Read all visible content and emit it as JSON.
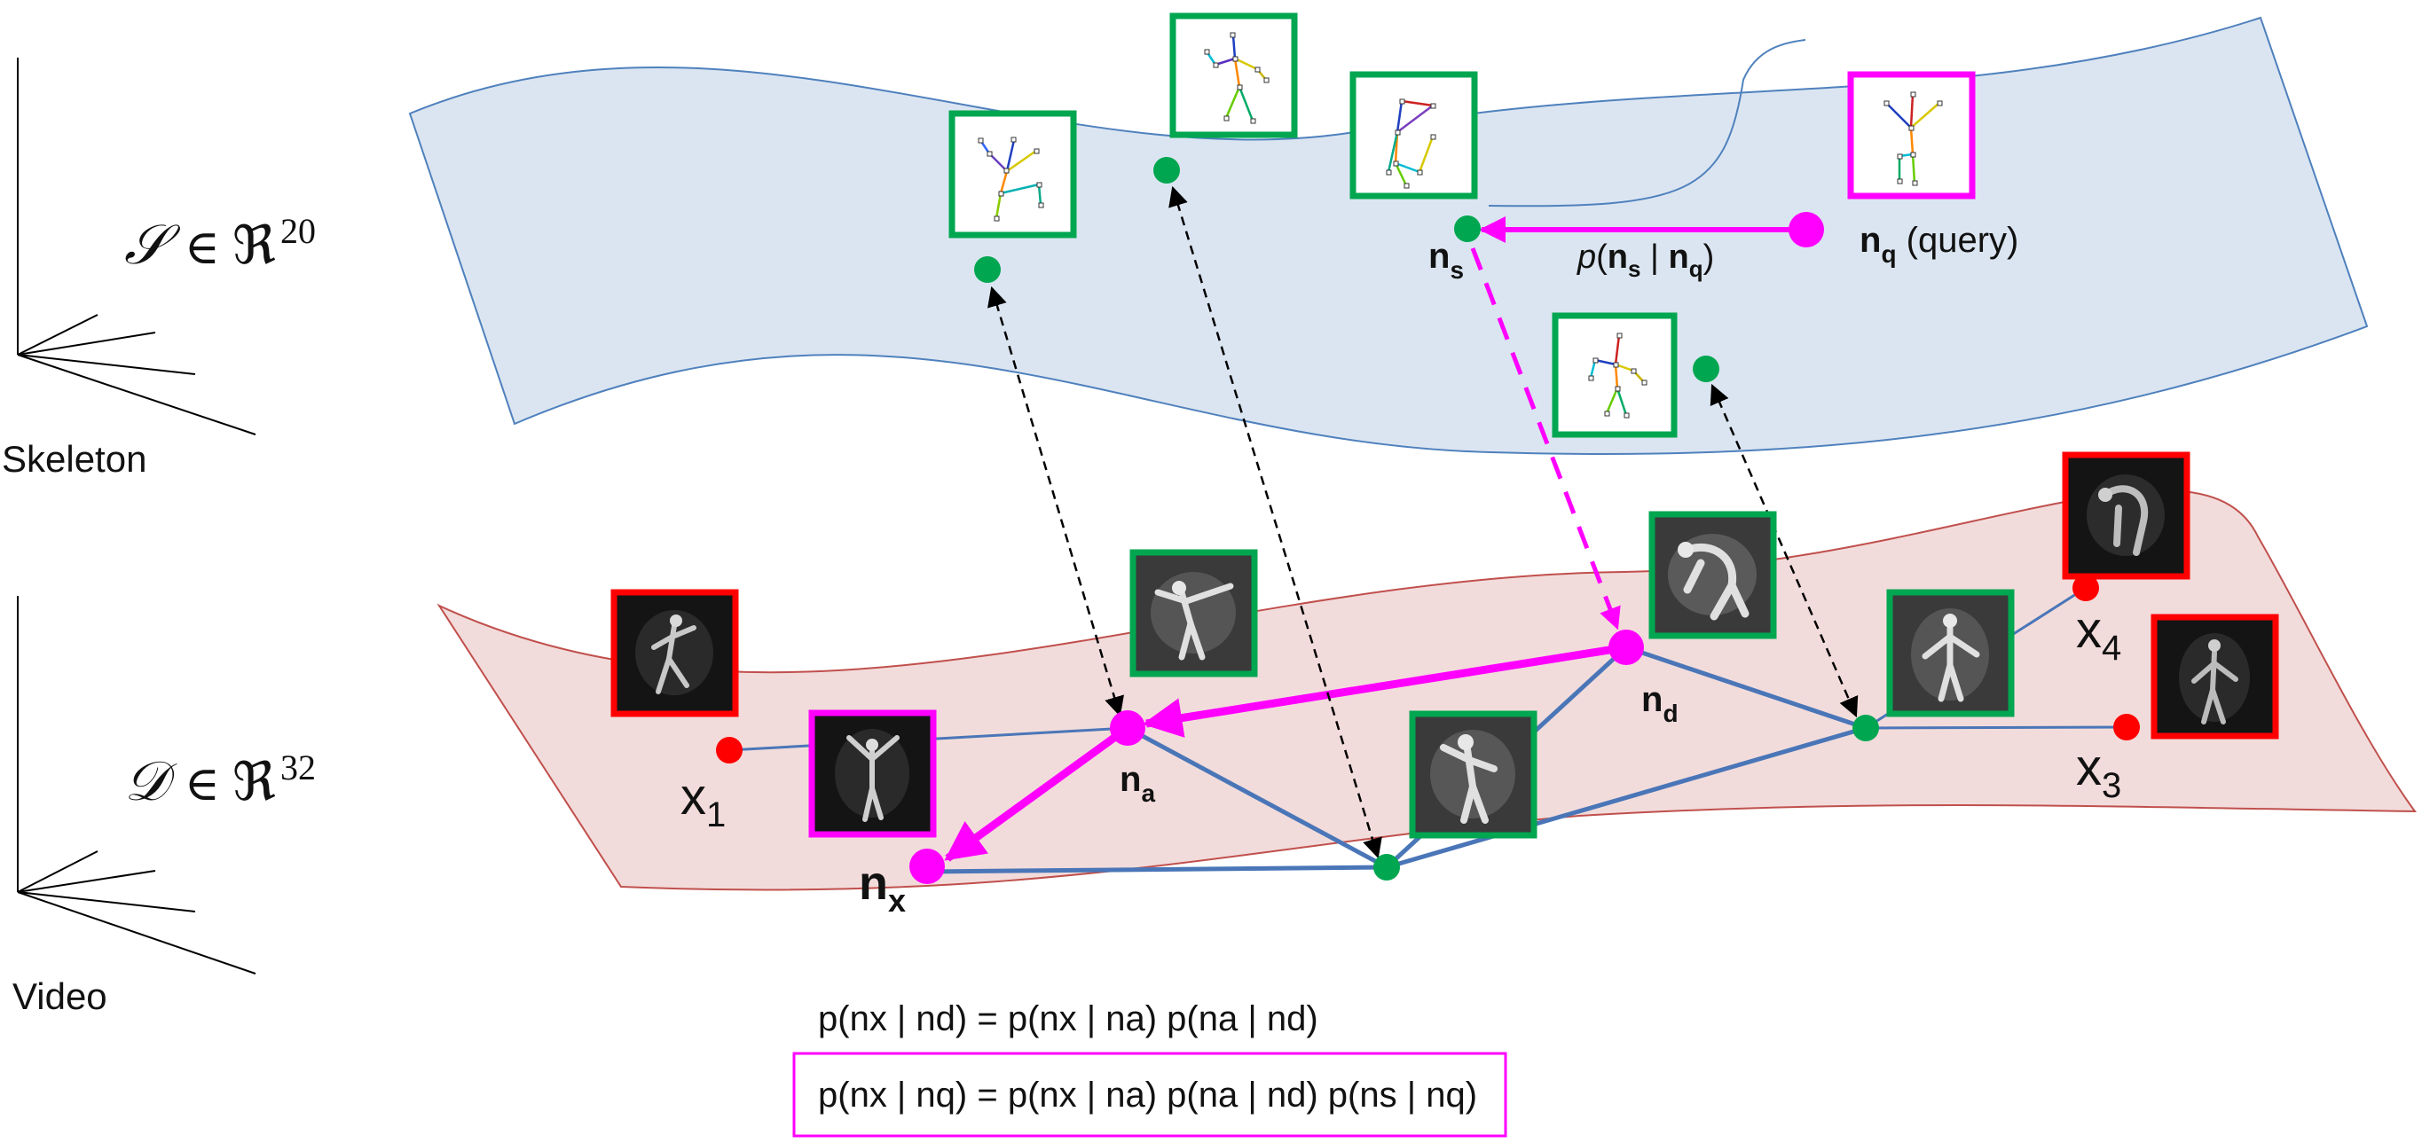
{
  "spaces": {
    "skeleton": {
      "math": {
        "sym": "𝒮",
        "in": "∈",
        "real": "ℜ",
        "exp": "20"
      },
      "caption": "Skeleton"
    },
    "video": {
      "math": {
        "sym": "𝒟",
        "in": "∈",
        "real": "ℜ",
        "exp": "32"
      },
      "caption": "Video"
    }
  },
  "nodes": {
    "n_q": {
      "base": "n",
      "sub": "q",
      "suffix": " (query)"
    },
    "n_s": {
      "base": "n",
      "sub": "s"
    },
    "n_d": {
      "base": "n",
      "sub": "d"
    },
    "n_a": {
      "base": "n",
      "sub": "a"
    },
    "n_x": {
      "base": "n",
      "sub": "x"
    },
    "x1": {
      "base": "x",
      "sub": "1"
    },
    "x3": {
      "base": "x",
      "sub": "3"
    },
    "x4": {
      "base": "x",
      "sub": "4"
    }
  },
  "edge_label": {
    "p": "p",
    "open": "(",
    "a": "n",
    "a_sub": "s",
    "bar": " | ",
    "b": "n",
    "b_sub": "q",
    "close": ")"
  },
  "equations": {
    "eq1": "p(nx | nd) = p(nx | na) p(na | nd)",
    "eq2": "p(nx | nq) = p(nx | na) p(na | nd) p(ns | nq)"
  },
  "colors": {
    "skeleton_band": "#dbe5f1",
    "skeleton_band_stroke": "#4f81bd",
    "video_band": "#f2dcdb",
    "video_band_stroke": "#c0504d",
    "magenta": "#ff00ff",
    "green": "#00a650",
    "red": "#ff0000",
    "edge_blue": "#4a76b8"
  }
}
